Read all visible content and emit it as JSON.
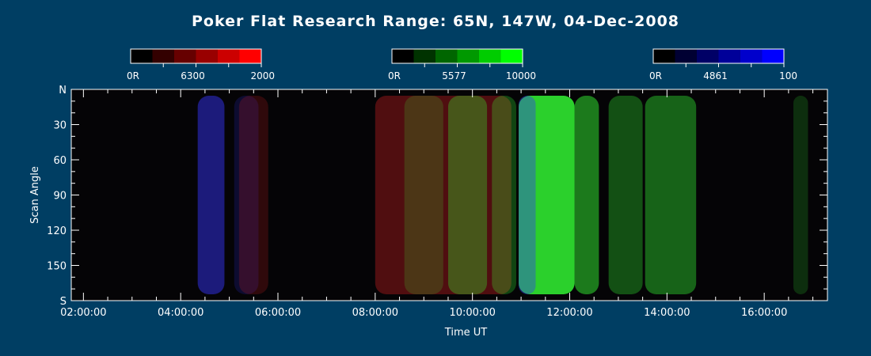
{
  "chart_data": {
    "type": "heatmap",
    "title": "Poker Flat Research Range: 65N, 147W, 04-Dec-2008",
    "xlabel": "Time UT",
    "ylabel": "Scan Angle",
    "x_ticks": [
      "02:00:00",
      "04:00:00",
      "06:00:00",
      "08:00:00",
      "10:00:00",
      "12:00:00",
      "14:00:00",
      "16:00:00"
    ],
    "y_ticks": [
      "N",
      "30",
      "60",
      "90",
      "120",
      "150",
      "S"
    ],
    "xlim_hours": [
      1.75,
      17.3
    ],
    "ylim": [
      0,
      180
    ],
    "colorbars": [
      {
        "color": "#ff0000",
        "labels": [
          "0R",
          "6300",
          "2000"
        ]
      },
      {
        "color": "#00ff00",
        "labels": [
          "0R",
          "5577",
          "10000"
        ]
      },
      {
        "color": "#0000ff",
        "labels": [
          "0R",
          "4861",
          "100"
        ]
      }
    ],
    "intensity_bands": [
      {
        "channel": "blue",
        "start_hour": 4.35,
        "end_hour": 4.9,
        "level": 0.55
      },
      {
        "channel": "blue",
        "start_hour": 5.1,
        "end_hour": 5.6,
        "level": 0.2
      },
      {
        "channel": "red",
        "start_hour": 5.2,
        "end_hour": 5.8,
        "level": 0.2
      },
      {
        "channel": "red",
        "start_hour": 8.0,
        "end_hour": 10.8,
        "level": 0.35
      },
      {
        "channel": "green",
        "start_hour": 8.6,
        "end_hour": 9.4,
        "level": 0.2
      },
      {
        "channel": "green",
        "start_hour": 9.5,
        "end_hour": 10.3,
        "level": 0.35
      },
      {
        "channel": "green",
        "start_hour": 10.4,
        "end_hour": 10.9,
        "level": 0.3
      },
      {
        "channel": "green",
        "start_hour": 10.95,
        "end_hour": 12.1,
        "level": 0.95
      },
      {
        "channel": "blue",
        "start_hour": 10.95,
        "end_hour": 11.3,
        "level": 0.45
      },
      {
        "channel": "green",
        "start_hour": 12.1,
        "end_hour": 12.6,
        "level": 0.55
      },
      {
        "channel": "green",
        "start_hour": 12.8,
        "end_hour": 13.5,
        "level": 0.35
      },
      {
        "channel": "green",
        "start_hour": 13.55,
        "end_hour": 14.6,
        "level": 0.45
      },
      {
        "channel": "green",
        "start_hour": 16.6,
        "end_hour": 16.9,
        "level": 0.2
      }
    ]
  }
}
